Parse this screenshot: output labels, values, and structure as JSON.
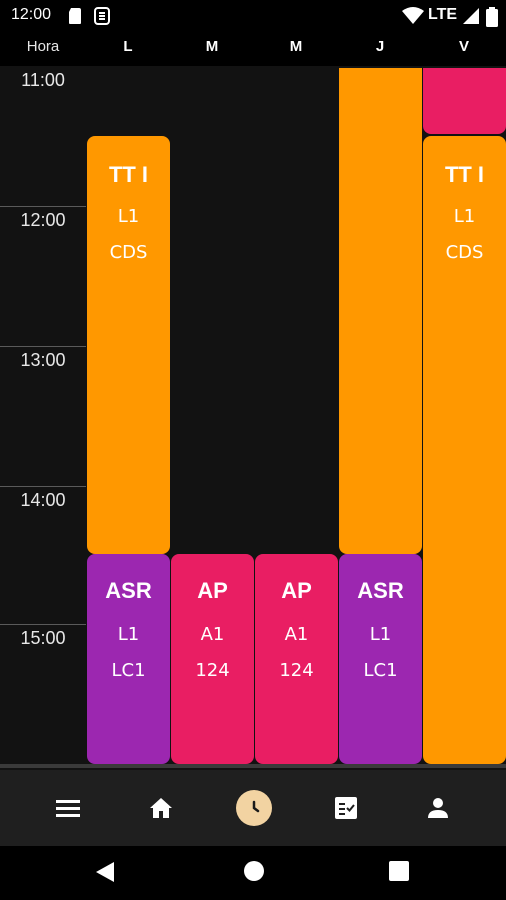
{
  "status_bar": {
    "time": "12:00",
    "network_label": "LTE",
    "icons": [
      "sd-card-icon",
      "app-notification-icon",
      "wifi-icon",
      "cellular-signal-icon",
      "battery-icon"
    ]
  },
  "header": {
    "hour_column": "Hora",
    "days": [
      "L",
      "M",
      "M",
      "J",
      "V"
    ]
  },
  "hours": [
    "11:00",
    "12:00",
    "13:00",
    "14:00",
    "15:00"
  ],
  "blocks": [
    {
      "title": "TT I",
      "line1": "L1",
      "line2": "CDS"
    },
    {
      "title": "ASR",
      "line1": "L1",
      "line2": "LC1"
    },
    {
      "title": "AP",
      "line1": "A1",
      "line2": "124"
    },
    {
      "title": "AP",
      "line1": "A1",
      "line2": "124"
    },
    {
      "title": "ASR",
      "line1": "L1",
      "line2": "LC1"
    },
    {
      "title": "TT I",
      "line1": "L1",
      "line2": "CDS"
    }
  ],
  "colors": {
    "orange": "#ff9800",
    "purple": "#9c27b0",
    "pink": "#e91e63",
    "nav_active": "#f2d3a2"
  },
  "bottom_nav": {
    "items": [
      "menu-icon",
      "home-icon",
      "clock-icon",
      "checklist-icon",
      "person-icon"
    ],
    "active": "clock-icon"
  },
  "system_nav": [
    "back-icon",
    "home-circle-icon",
    "recents-icon"
  ]
}
